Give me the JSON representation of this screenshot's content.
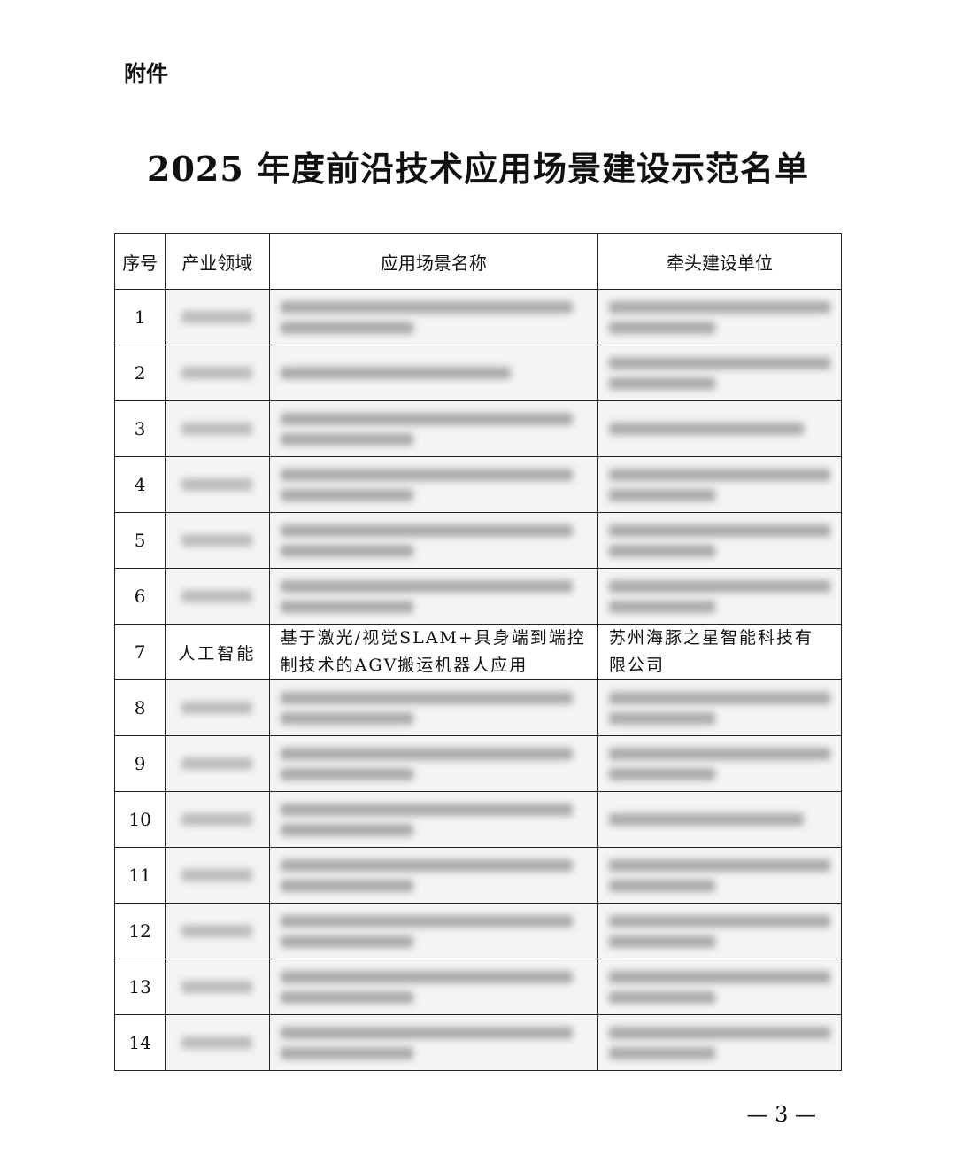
{
  "attachment_label": "附件",
  "title": "2025 年度前沿技术应用场景建设示范名单",
  "table": {
    "headers": [
      "序号",
      "产业领域",
      "应用场景名称",
      "牵头建设单位"
    ],
    "rows": [
      {
        "no": "1",
        "blurred": true,
        "lines": [
          2,
          2
        ]
      },
      {
        "no": "2",
        "blurred": true,
        "lines": [
          1,
          2
        ]
      },
      {
        "no": "3",
        "blurred": true,
        "lines": [
          2,
          1
        ]
      },
      {
        "no": "4",
        "blurred": true,
        "lines": [
          2,
          2
        ]
      },
      {
        "no": "5",
        "blurred": true,
        "lines": [
          2,
          2
        ]
      },
      {
        "no": "6",
        "blurred": true,
        "lines": [
          2,
          2
        ]
      },
      {
        "no": "7",
        "blurred": false,
        "domain": "人工智能",
        "scenario": "基于激光/视觉SLAM+具身端到端控制技术的AGV搬运机器人应用",
        "unit": "苏州海豚之星智能科技有限公司"
      },
      {
        "no": "8",
        "blurred": true,
        "lines": [
          2,
          2
        ]
      },
      {
        "no": "9",
        "blurred": true,
        "lines": [
          2,
          2
        ]
      },
      {
        "no": "10",
        "blurred": true,
        "lines": [
          2,
          1
        ]
      },
      {
        "no": "11",
        "blurred": true,
        "lines": [
          2,
          2
        ]
      },
      {
        "no": "12",
        "blurred": true,
        "lines": [
          2,
          2
        ]
      },
      {
        "no": "13",
        "blurred": true,
        "lines": [
          2,
          2
        ]
      },
      {
        "no": "14",
        "blurred": true,
        "lines": [
          2,
          2
        ]
      }
    ]
  },
  "page_number": "— 3 —"
}
